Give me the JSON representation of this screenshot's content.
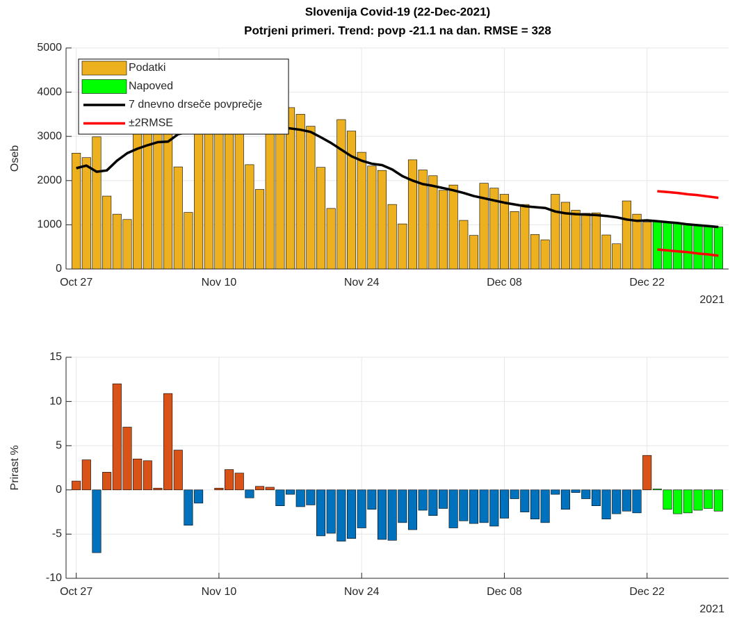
{
  "chart_data": [
    {
      "type": "bar",
      "title": "Slovenija Covid-19 (22-Dec-2021)",
      "subtitle": "Potrjeni primeri. Trend: povp -21.1 na dan. RMSE = 328",
      "ylabel": "Oseb",
      "x_year_label": "2021",
      "x": [
        "2021-10-27",
        "2021-10-28",
        "2021-10-29",
        "2021-10-30",
        "2021-10-31",
        "2021-11-01",
        "2021-11-02",
        "2021-11-03",
        "2021-11-04",
        "2021-11-05",
        "2021-11-06",
        "2021-11-07",
        "2021-11-08",
        "2021-11-09",
        "2021-11-10",
        "2021-11-11",
        "2021-11-12",
        "2021-11-13",
        "2021-11-14",
        "2021-11-15",
        "2021-11-16",
        "2021-11-17",
        "2021-11-18",
        "2021-11-19",
        "2021-11-20",
        "2021-11-21",
        "2021-11-22",
        "2021-11-23",
        "2021-11-24",
        "2021-11-25",
        "2021-11-26",
        "2021-11-27",
        "2021-11-28",
        "2021-11-29",
        "2021-11-30",
        "2021-12-01",
        "2021-12-02",
        "2021-12-03",
        "2021-12-04",
        "2021-12-05",
        "2021-12-06",
        "2021-12-07",
        "2021-12-08",
        "2021-12-09",
        "2021-12-10",
        "2021-12-11",
        "2021-12-12",
        "2021-12-13",
        "2021-12-14",
        "2021-12-15",
        "2021-12-16",
        "2021-12-17",
        "2021-12-18",
        "2021-12-19",
        "2021-12-20",
        "2021-12-21",
        "2021-12-22",
        "2021-12-23",
        "2021-12-24",
        "2021-12-25",
        "2021-12-26",
        "2021-12-27",
        "2021-12-28",
        "2021-12-29"
      ],
      "xlim": [
        "2021-10-26",
        "2021-12-30"
      ],
      "xticks": [
        {
          "value": "2021-10-27",
          "label": "Oct 27"
        },
        {
          "value": "2021-11-10",
          "label": "Nov 10"
        },
        {
          "value": "2021-11-24",
          "label": "Nov 24"
        },
        {
          "value": "2021-12-08",
          "label": "Dec 08"
        },
        {
          "value": "2021-12-22",
          "label": "Dec 22"
        }
      ],
      "ylim": [
        0,
        5000
      ],
      "yticks": [
        0,
        1000,
        2000,
        3000,
        4000,
        5000
      ],
      "grid": true,
      "legend": "top-left",
      "series": [
        {
          "name": "Podatki",
          "type": "bar",
          "color": "#edb120",
          "values": [
            2620,
            2520,
            2990,
            1650,
            1240,
            1120,
            3400,
            3600,
            3300,
            3100,
            2310,
            1280,
            3600,
            3700,
            3500,
            3400,
            3300,
            2360,
            1800,
            3300,
            3500,
            3650,
            3500,
            3230,
            2300,
            1370,
            3380,
            3120,
            2640,
            2330,
            2230,
            1460,
            1020,
            2470,
            2240,
            2110,
            1780,
            1900,
            1100,
            760,
            1940,
            1830,
            1690,
            1300,
            1460,
            780,
            660,
            1690,
            1510,
            1330,
            1260,
            1270,
            770,
            570,
            1540,
            1240,
            1060,
            null,
            null,
            null,
            null,
            null,
            null,
            null
          ]
        },
        {
          "name": "Napoved",
          "type": "bar",
          "color": "#00ff00",
          "values": [
            null,
            null,
            null,
            null,
            null,
            null,
            null,
            null,
            null,
            null,
            null,
            null,
            null,
            null,
            null,
            null,
            null,
            null,
            null,
            null,
            null,
            null,
            null,
            null,
            null,
            null,
            null,
            null,
            null,
            null,
            null,
            null,
            null,
            null,
            null,
            null,
            null,
            null,
            null,
            null,
            null,
            null,
            null,
            null,
            null,
            null,
            null,
            null,
            null,
            null,
            null,
            null,
            null,
            null,
            null,
            null,
            null,
            1080,
            1060,
            1040,
            1010,
            990,
            970,
            950
          ]
        },
        {
          "name": "7 dnevno drseče povprečje",
          "type": "line",
          "color": "#000000",
          "values": [
            2280,
            2340,
            2200,
            2230,
            2450,
            2620,
            2720,
            2800,
            2870,
            2880,
            3050,
            3100,
            3150,
            3200,
            3220,
            3250,
            3250,
            3230,
            3220,
            3220,
            3200,
            3180,
            3150,
            3100,
            2980,
            2850,
            2700,
            2550,
            2450,
            2380,
            2350,
            2250,
            2100,
            2000,
            1920,
            1880,
            1830,
            1780,
            1720,
            1650,
            1600,
            1550,
            1500,
            1460,
            1420,
            1400,
            1380,
            1300,
            1260,
            1240,
            1230,
            1220,
            1200,
            1170,
            1120,
            1090,
            1100,
            1080,
            1060,
            1040,
            1010,
            990,
            970,
            950
          ]
        },
        {
          "name": "±2RMSE",
          "type": "band",
          "color": "#ff0000",
          "upper": [
            null,
            null,
            null,
            null,
            null,
            null,
            null,
            null,
            null,
            null,
            null,
            null,
            null,
            null,
            null,
            null,
            null,
            null,
            null,
            null,
            null,
            null,
            null,
            null,
            null,
            null,
            null,
            null,
            null,
            null,
            null,
            null,
            null,
            null,
            null,
            null,
            null,
            null,
            null,
            null,
            null,
            null,
            null,
            null,
            null,
            null,
            null,
            null,
            null,
            null,
            null,
            null,
            null,
            null,
            null,
            null,
            null,
            1760,
            1740,
            1720,
            1690,
            1670,
            1640,
            1610
          ],
          "lower": [
            null,
            null,
            null,
            null,
            null,
            null,
            null,
            null,
            null,
            null,
            null,
            null,
            null,
            null,
            null,
            null,
            null,
            null,
            null,
            null,
            null,
            null,
            null,
            null,
            null,
            null,
            null,
            null,
            null,
            null,
            null,
            null,
            null,
            null,
            null,
            null,
            null,
            null,
            null,
            null,
            null,
            null,
            null,
            null,
            null,
            null,
            null,
            null,
            null,
            null,
            null,
            null,
            null,
            null,
            null,
            null,
            null,
            440,
            420,
            400,
            380,
            350,
            330,
            300
          ]
        }
      ]
    },
    {
      "type": "bar",
      "ylabel": "Prirast %",
      "x_year_label": "2021",
      "x": [
        "2021-10-27",
        "2021-10-28",
        "2021-10-29",
        "2021-10-30",
        "2021-10-31",
        "2021-11-01",
        "2021-11-02",
        "2021-11-03",
        "2021-11-04",
        "2021-11-05",
        "2021-11-06",
        "2021-11-07",
        "2021-11-08",
        "2021-11-09",
        "2021-11-10",
        "2021-11-11",
        "2021-11-12",
        "2021-11-13",
        "2021-11-14",
        "2021-11-15",
        "2021-11-16",
        "2021-11-17",
        "2021-11-18",
        "2021-11-19",
        "2021-11-20",
        "2021-11-21",
        "2021-11-22",
        "2021-11-23",
        "2021-11-24",
        "2021-11-25",
        "2021-11-26",
        "2021-11-27",
        "2021-11-28",
        "2021-11-29",
        "2021-11-30",
        "2021-12-01",
        "2021-12-02",
        "2021-12-03",
        "2021-12-04",
        "2021-12-05",
        "2021-12-06",
        "2021-12-07",
        "2021-12-08",
        "2021-12-09",
        "2021-12-10",
        "2021-12-11",
        "2021-12-12",
        "2021-12-13",
        "2021-12-14",
        "2021-12-15",
        "2021-12-16",
        "2021-12-17",
        "2021-12-18",
        "2021-12-19",
        "2021-12-20",
        "2021-12-21",
        "2021-12-22",
        "2021-12-23",
        "2021-12-24",
        "2021-12-25",
        "2021-12-26",
        "2021-12-27",
        "2021-12-28",
        "2021-12-29"
      ],
      "xlim": [
        "2021-10-26",
        "2021-12-30"
      ],
      "xticks": [
        {
          "value": "2021-10-27",
          "label": "Oct 27"
        },
        {
          "value": "2021-11-10",
          "label": "Nov 10"
        },
        {
          "value": "2021-11-24",
          "label": "Nov 24"
        },
        {
          "value": "2021-12-08",
          "label": "Dec 08"
        },
        {
          "value": "2021-12-22",
          "label": "Dec 22"
        }
      ],
      "ylim": [
        -10,
        15
      ],
      "yticks": [
        -10,
        -5,
        0,
        5,
        10,
        15
      ],
      "grid": true,
      "series": [
        {
          "type": "bar",
          "positive_color": "#d95319",
          "negative_color": "#0072bd",
          "values": [
            1.0,
            3.4,
            -7.1,
            2.0,
            12.0,
            7.1,
            3.5,
            3.3,
            0.2,
            10.9,
            4.5,
            -4.0,
            -1.5,
            0,
            0.2,
            2.3,
            1.9,
            -0.9,
            0.4,
            0.3,
            -1.8,
            -0.5,
            -1.9,
            -1.7,
            -5.2,
            -4.9,
            -5.8,
            -5.5,
            -4.3,
            -2.2,
            -5.6,
            -5.7,
            -3.7,
            -4.5,
            -2.3,
            -2.9,
            -2.1,
            -4.3,
            -3.5,
            -3.8,
            -3.7,
            -4.1,
            -3.2,
            -1.0,
            -2.5,
            -3.3,
            -3.7,
            -0.5,
            -2.2,
            -0.3,
            -1.0,
            -1.8,
            -3.3,
            -2.7,
            -2.4,
            -2.6,
            3.9,
            null,
            null,
            null,
            null,
            null,
            null,
            null
          ]
        },
        {
          "type": "bar",
          "color": "#00ff00",
          "values": [
            null,
            null,
            null,
            null,
            null,
            null,
            null,
            null,
            null,
            null,
            null,
            null,
            null,
            null,
            null,
            null,
            null,
            null,
            null,
            null,
            null,
            null,
            null,
            null,
            null,
            null,
            null,
            null,
            null,
            null,
            null,
            null,
            null,
            null,
            null,
            null,
            null,
            null,
            null,
            null,
            null,
            null,
            null,
            null,
            null,
            null,
            null,
            null,
            null,
            null,
            null,
            null,
            null,
            null,
            null,
            null,
            null,
            0.1,
            -2.2,
            -2.7,
            -2.6,
            -2.3,
            -2.1,
            -2.4
          ]
        }
      ]
    }
  ]
}
